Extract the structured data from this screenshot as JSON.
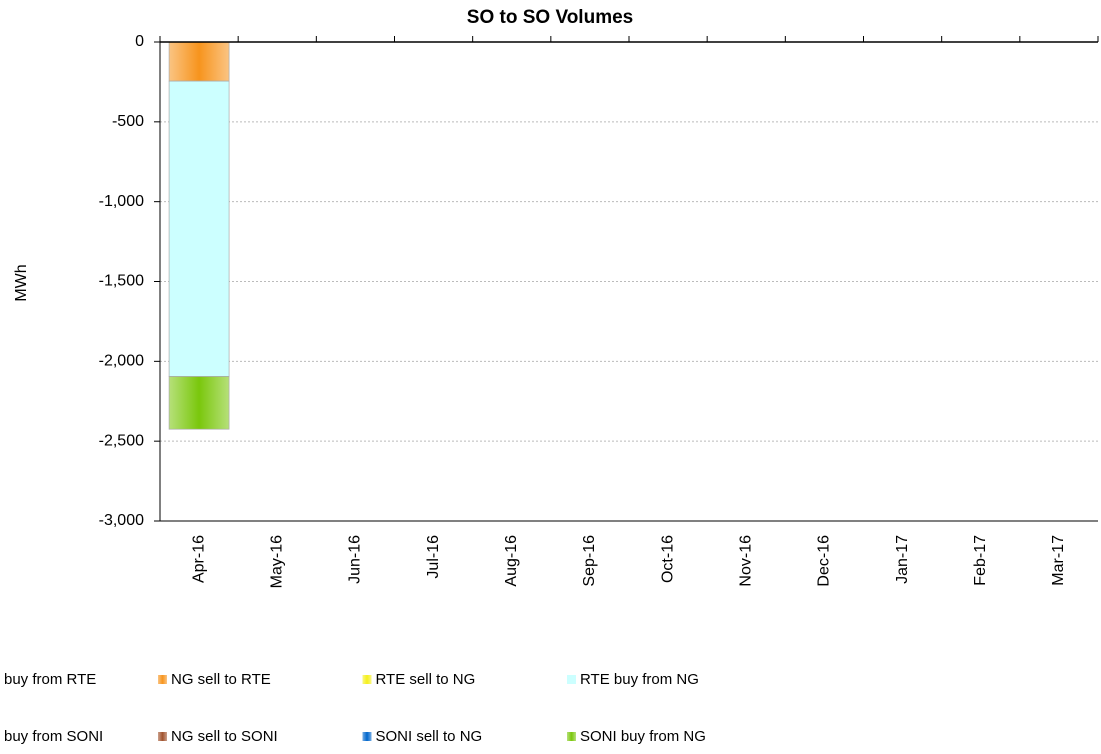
{
  "chart_data": {
    "type": "bar",
    "stacked": true,
    "title": "SO to SO Volumes",
    "y_label": "MWh",
    "categories": [
      "Apr-16",
      "May-16",
      "Jun-16",
      "Jul-16",
      "Aug-16",
      "Sep-16",
      "Oct-16",
      "Nov-16",
      "Dec-16",
      "Jan-17",
      "Feb-17",
      "Mar-17"
    ],
    "series": [
      {
        "name": "buy from RTE",
        "color": "#9e9e9e",
        "values": [
          null,
          null,
          null,
          null,
          null,
          null,
          null,
          null,
          null,
          null,
          null,
          null
        ]
      },
      {
        "name": "NG sell to RTE",
        "color": "#f7941d",
        "values": [
          -245,
          null,
          null,
          null,
          null,
          null,
          null,
          null,
          null,
          null,
          null,
          null
        ]
      },
      {
        "name": "RTE sell to NG",
        "color": "#f5f01a",
        "values": [
          null,
          null,
          null,
          null,
          null,
          null,
          null,
          null,
          null,
          null,
          null,
          null
        ]
      },
      {
        "name": "RTE buy from NG",
        "color": "#ccffff",
        "values": [
          -1850,
          null,
          null,
          null,
          null,
          null,
          null,
          null,
          null,
          null,
          null,
          null
        ]
      },
      {
        "name": "buy from SONI",
        "color": "#7f7f7f",
        "values": [
          null,
          null,
          null,
          null,
          null,
          null,
          null,
          null,
          null,
          null,
          null,
          null
        ]
      },
      {
        "name": "NG sell to SONI",
        "color": "#a0522d",
        "values": [
          null,
          null,
          null,
          null,
          null,
          null,
          null,
          null,
          null,
          null,
          null,
          null
        ]
      },
      {
        "name": "SONI sell to NG",
        "color": "#0066cc",
        "values": [
          null,
          null,
          null,
          null,
          null,
          null,
          null,
          null,
          null,
          null,
          null,
          null
        ]
      },
      {
        "name": "SONI buy from NG",
        "color": "#7ac70c",
        "values": [
          -330,
          null,
          null,
          null,
          null,
          null,
          null,
          null,
          null,
          null,
          null,
          null
        ]
      }
    ],
    "ylim": [
      -3000,
      0
    ],
    "yticks": [
      0,
      {
        "value": -500,
        "label": "-500"
      },
      {
        "value": -1000,
        "label": "-1,000"
      },
      {
        "value": -1500,
        "label": "-1,500"
      },
      {
        "value": -2000,
        "label": "-2,000"
      },
      {
        "value": -2500,
        "label": "-2,500"
      },
      {
        "value": -3000,
        "label": "-3,000"
      }
    ],
    "grid": true,
    "legend": "bottom"
  }
}
